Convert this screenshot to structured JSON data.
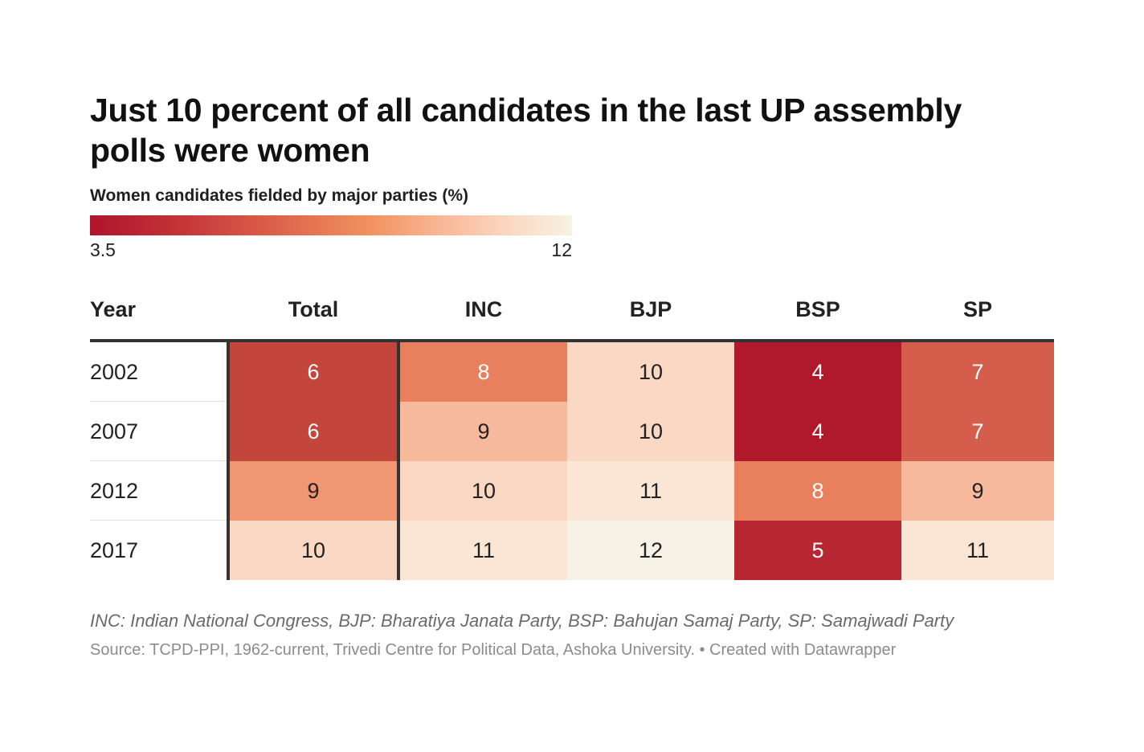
{
  "chart_data": {
    "type": "table",
    "title": "Just 10 percent of all candidates in the last UP assembly polls were women",
    "subtitle": "Women candidates fielded by major parties (%)",
    "legend": {
      "min_label": "3.5",
      "max_label": "12",
      "min": 3.5,
      "max": 12
    },
    "columns": [
      "Year",
      "Total",
      "INC",
      "BJP",
      "BSP",
      "SP"
    ],
    "rows": [
      {
        "year": "2002",
        "values": [
          6,
          8,
          10,
          4,
          7
        ]
      },
      {
        "year": "2007",
        "values": [
          6,
          9,
          10,
          4,
          7
        ]
      },
      {
        "year": "2012",
        "values": [
          9,
          10,
          11,
          8,
          9
        ]
      },
      {
        "year": "2017",
        "values": [
          10,
          11,
          12,
          5,
          11
        ]
      }
    ],
    "colors": {
      "4": "#b0182c",
      "5": "#b72631",
      "6": "#c4453c",
      "7": "#d45d4b",
      "8": "#e8805e",
      "9": "#f09672",
      "9b": "#f7b99b",
      "10": "#fbd8c3",
      "11": "#fbe6d6",
      "12": "#f6f3e6"
    },
    "note": "INC: Indian National Congress, BJP: Bharatiya Janata Party, BSP: Bahujan Samaj Party, SP: Samajwadi Party",
    "source": "Source: TCPD-PPI, 1962-current, Trivedi Centre for Political Data, Ashoka University. • Created with Datawrapper"
  }
}
